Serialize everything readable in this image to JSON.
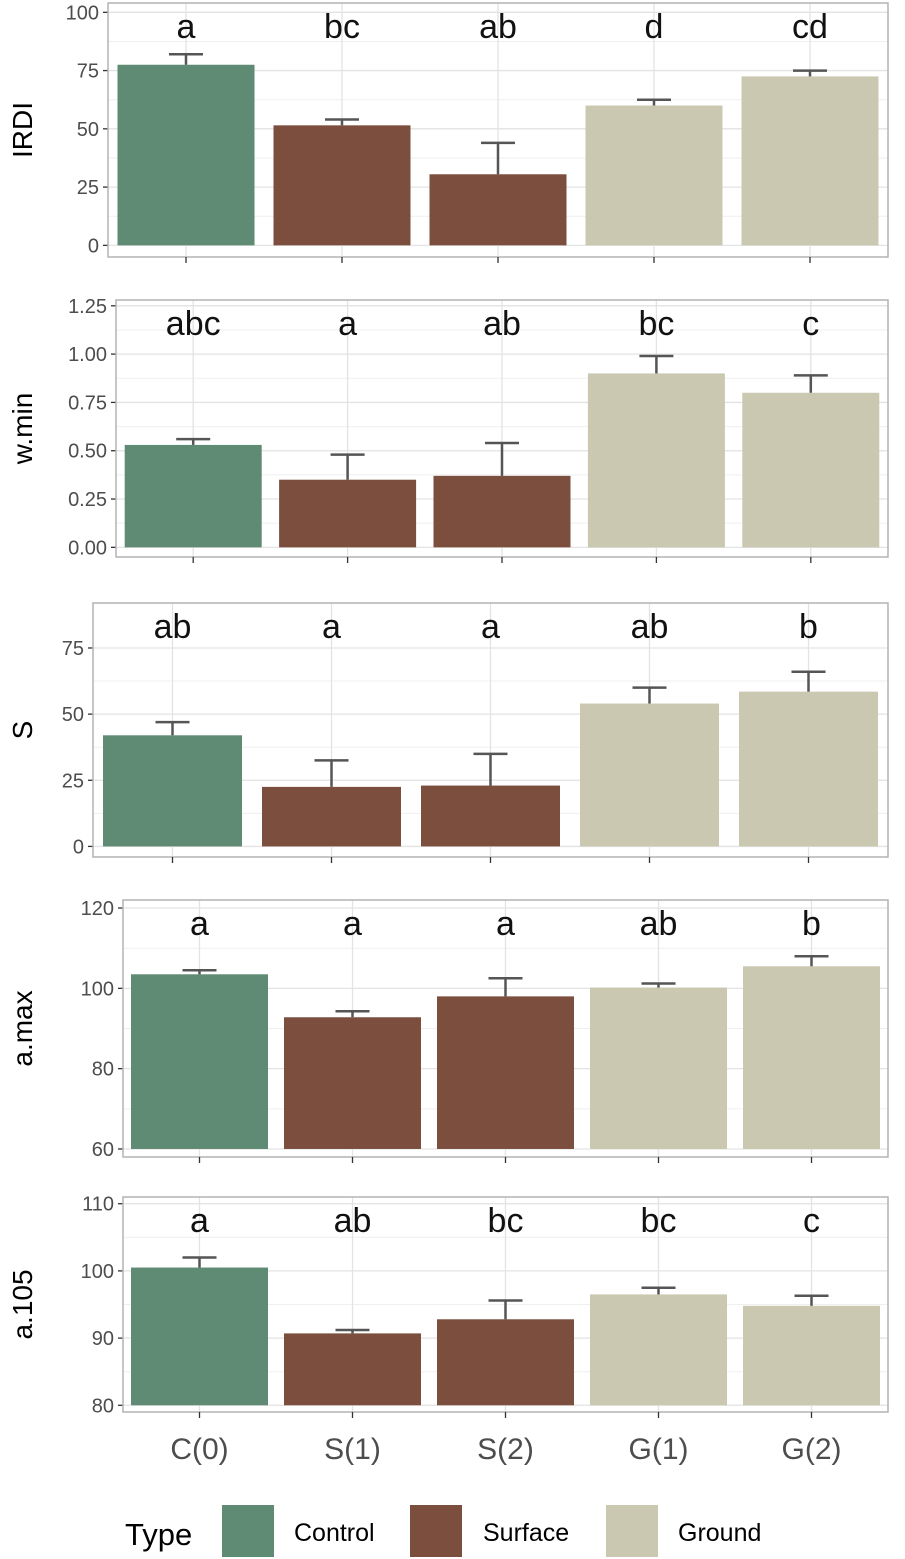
{
  "chart_data": [
    {
      "type": "bar",
      "ylabel": "IRDI",
      "categories": [
        "C(0)",
        "S(1)",
        "S(2)",
        "G(1)",
        "G(2)"
      ],
      "values": [
        77.5,
        51.5,
        30.5,
        60,
        72.5
      ],
      "errors": [
        4.5,
        2.5,
        13.5,
        2.5,
        2.5
      ],
      "letters": [
        "a",
        "bc",
        "ab",
        "d",
        "cd"
      ],
      "yticks": [
        0,
        25,
        50,
        75,
        100
      ],
      "ytick_labels": [
        "0",
        "25",
        "50",
        "75",
        "100"
      ],
      "ylim": [
        -5,
        104
      ],
      "grid": true
    },
    {
      "type": "bar",
      "ylabel": "w.min",
      "categories": [
        "C(0)",
        "S(1)",
        "S(2)",
        "G(1)",
        "G(2)"
      ],
      "values": [
        0.53,
        0.35,
        0.37,
        0.9,
        0.8
      ],
      "errors": [
        0.03,
        0.13,
        0.17,
        0.09,
        0.09
      ],
      "letters": [
        "abc",
        "a",
        "ab",
        "bc",
        "c"
      ],
      "yticks": [
        0,
        0.25,
        0.5,
        0.75,
        1.0,
        1.25
      ],
      "ytick_labels": [
        "0.00",
        "0.25",
        "0.50",
        "0.75",
        "1.00",
        "1.25"
      ],
      "ylim": [
        -0.05,
        1.28
      ],
      "grid": true
    },
    {
      "type": "bar",
      "ylabel": "S",
      "categories": [
        "C(0)",
        "S(1)",
        "S(2)",
        "G(1)",
        "G(2)"
      ],
      "values": [
        42,
        22.5,
        23,
        54,
        58.5
      ],
      "errors": [
        5,
        10,
        12,
        6,
        7.5
      ],
      "letters": [
        "ab",
        "a",
        "a",
        "ab",
        "b"
      ],
      "yticks": [
        0,
        25,
        50,
        75
      ],
      "ytick_labels": [
        "0",
        "25",
        "50",
        "75"
      ],
      "ylim": [
        -4,
        92
      ],
      "grid": true
    },
    {
      "type": "bar",
      "ylabel": "a.max",
      "categories": [
        "C(0)",
        "S(1)",
        "S(2)",
        "G(1)",
        "G(2)"
      ],
      "values": [
        103.5,
        92.8,
        98,
        100.2,
        105.5
      ],
      "errors": [
        1,
        1.5,
        4.5,
        1,
        2.5
      ],
      "letters": [
        "a",
        "a",
        "a",
        "ab",
        "b"
      ],
      "yticks": [
        60,
        80,
        100,
        120
      ],
      "ytick_labels": [
        "60",
        "80",
        "100",
        "120"
      ],
      "ylim": [
        58,
        122
      ],
      "grid": true
    },
    {
      "type": "bar",
      "ylabel": "a.105",
      "categories": [
        "C(0)",
        "S(1)",
        "S(2)",
        "G(1)",
        "G(2)"
      ],
      "values": [
        100.5,
        90.7,
        92.8,
        96.5,
        94.8
      ],
      "errors": [
        1.5,
        0.5,
        2.8,
        1,
        1.5
      ],
      "letters": [
        "a",
        "ab",
        "bc",
        "bc",
        "c"
      ],
      "yticks": [
        80,
        90,
        100,
        110
      ],
      "ytick_labels": [
        "80",
        "90",
        "100",
        "110"
      ],
      "ylim": [
        79,
        111
      ],
      "grid": true
    }
  ],
  "bar_types": [
    "Control",
    "Surface",
    "Surface",
    "Ground",
    "Ground"
  ],
  "x_tick_labels": [
    "C(0)",
    "S(1)",
    "S(2)",
    "G(1)",
    "G(2)"
  ],
  "legend": {
    "title": "Type",
    "position": "bottom",
    "items": [
      {
        "label": "Control",
        "color": "#5f8a73"
      },
      {
        "label": "Surface",
        "color": "#7b4e3e"
      },
      {
        "label": "Ground",
        "color": "#cac8b0"
      }
    ]
  },
  "colors": {
    "Control": "#5f8a73",
    "Surface": "#7b4e3e",
    "Ground": "#cac8b0",
    "error_bar": "#555555",
    "grid": "#e3e3e3",
    "panel_border": "#b3b3b3"
  }
}
